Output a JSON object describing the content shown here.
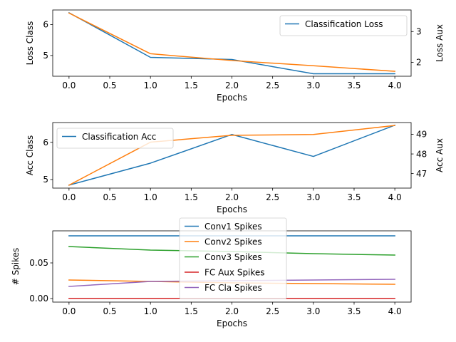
{
  "colors": {
    "blue": "#1f77b4",
    "orange": "#ff7f0e",
    "green": "#2ca02c",
    "red": "#d62728",
    "purple": "#9467bd"
  },
  "chart_data": [
    {
      "type": "line",
      "xlabel": "Epochs",
      "ylabel": "Loss Class",
      "ylabel_right": "Loss Aux",
      "x": [
        0,
        1,
        2,
        3,
        4
      ],
      "xlim": [
        -0.2,
        4.2
      ],
      "xticks": [
        "0.0",
        "0.5",
        "1.0",
        "1.5",
        "2.0",
        "2.5",
        "3.0",
        "3.5",
        "4.0"
      ],
      "ylim": [
        4.33,
        6.47
      ],
      "yticks": [
        "5",
        "6"
      ],
      "ylim_right": [
        1.55,
        3.7
      ],
      "yticks_right": [
        "2",
        "3"
      ],
      "legend_position": "top-right",
      "series": [
        {
          "name": "Classification Loss",
          "axis": "left",
          "color": "blue",
          "values": [
            6.38,
            4.94,
            4.87,
            4.41,
            4.41
          ]
        },
        {
          "axis": "right",
          "color": "orange",
          "values": [
            3.6,
            2.28,
            2.06,
            1.89,
            1.71
          ]
        }
      ]
    },
    {
      "type": "line",
      "xlabel": "Epochs",
      "ylabel": "Acc Class",
      "ylabel_right": "Acc Aux",
      "x": [
        0,
        1,
        2,
        3,
        4
      ],
      "xlim": [
        -0.2,
        4.2
      ],
      "xticks": [
        "0.0",
        "0.5",
        "1.0",
        "1.5",
        "2.0",
        "2.5",
        "3.0",
        "3.5",
        "4.0"
      ],
      "ylim": [
        4.77,
        6.53
      ],
      "yticks": [
        "5",
        "6"
      ],
      "ylim_right": [
        46.26,
        49.6
      ],
      "yticks_right": [
        "47",
        "48",
        "49"
      ],
      "legend_position": "top-left",
      "series": [
        {
          "name": "Classification Acc",
          "axis": "left",
          "color": "blue",
          "values": [
            4.85,
            5.44,
            6.21,
            5.62,
            6.46
          ]
        },
        {
          "axis": "right",
          "color": "orange",
          "values": [
            46.41,
            48.6,
            48.95,
            48.99,
            49.45
          ]
        }
      ]
    },
    {
      "type": "line",
      "xlabel": "Epochs",
      "ylabel": "# Spikes",
      "x": [
        0,
        1,
        2,
        3,
        4
      ],
      "xlim": [
        -0.2,
        4.2
      ],
      "xticks": [
        "0.0",
        "0.5",
        "1.0",
        "1.5",
        "2.0",
        "2.5",
        "3.0",
        "3.5",
        "4.0"
      ],
      "ylim": [
        -0.005,
        0.095
      ],
      "yticks": [
        "0.00",
        "0.05"
      ],
      "legend_position": "top-center",
      "series": [
        {
          "name": "Conv1 Spikes",
          "color": "blue",
          "values": [
            0.088,
            0.088,
            0.088,
            0.088,
            0.088
          ]
        },
        {
          "name": "Conv2 Spikes",
          "color": "orange",
          "values": [
            0.026,
            0.024,
            0.022,
            0.021,
            0.02
          ]
        },
        {
          "name": "Conv3 Spikes",
          "color": "green",
          "values": [
            0.073,
            0.068,
            0.066,
            0.063,
            0.061
          ]
        },
        {
          "name": "FC Aux Spikes",
          "color": "red",
          "values": [
            0.0003,
            0.0003,
            0.0003,
            0.0003,
            0.0003
          ]
        },
        {
          "name": "FC Cla Spikes",
          "color": "purple",
          "values": [
            0.017,
            0.024,
            0.025,
            0.026,
            0.027
          ]
        }
      ]
    }
  ]
}
